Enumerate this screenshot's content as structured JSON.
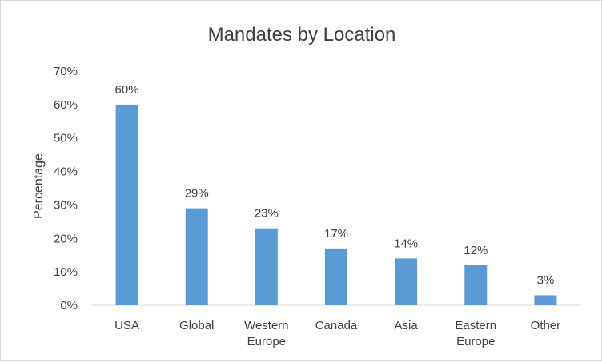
{
  "chart_data": {
    "type": "bar",
    "title": "Mandates by Location",
    "xlabel": "",
    "ylabel": "Percentage",
    "categories": [
      [
        "USA"
      ],
      [
        "Global"
      ],
      [
        "Western",
        "Europe"
      ],
      [
        "Canada"
      ],
      [
        "Asia"
      ],
      [
        "Eastern",
        "Europe"
      ],
      [
        "Other"
      ]
    ],
    "values": [
      60,
      29,
      23,
      17,
      14,
      12,
      3
    ],
    "data_labels": [
      "60%",
      "29%",
      "23%",
      "17%",
      "14%",
      "12%",
      "3%"
    ],
    "y_ticks": [
      "0%",
      "10%",
      "20%",
      "30%",
      "40%",
      "50%",
      "60%",
      "70%"
    ],
    "ylim": [
      0,
      70
    ],
    "grid": false,
    "legend": "none",
    "bar_color": "#5b9bd5",
    "axis_color": "#d9d9d9"
  }
}
